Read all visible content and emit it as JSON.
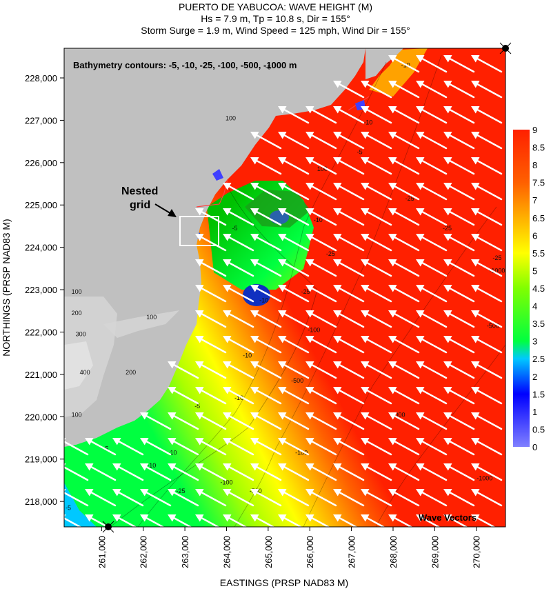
{
  "chart_data": {
    "type": "heatmap",
    "title": "PUERTO DE YABUCOA: WAVE HEIGHT (M)",
    "subtitle_lines": [
      "Hs = 7.9 m, Tp = 10.8 s, Dir = 155°",
      "Storm Surge = 1.9 m, Wind Speed = 125 mph, Wind Dir = 155°"
    ],
    "xlabel": "EASTINGS (PRSP NAD83 M)",
    "ylabel": "NORTHINGS (PRSP NAD83 M)",
    "xlim": [
      260100,
      270700
    ],
    "ylim": [
      217400,
      228700
    ],
    "x_ticks": [
      261000,
      262000,
      263000,
      264000,
      265000,
      266000,
      267000,
      268000,
      269000,
      270000
    ],
    "x_tick_labels": [
      "261,000",
      "262,000",
      "263,000",
      "264,000",
      "265,000",
      "266,000",
      "267,000",
      "268,000",
      "269,000",
      "270,000"
    ],
    "y_ticks": [
      218000,
      219000,
      220000,
      221000,
      222000,
      223000,
      224000,
      225000,
      226000,
      227000,
      228000
    ],
    "y_tick_labels": [
      "218,000",
      "219,000",
      "220,000",
      "221,000",
      "222,000",
      "223,000",
      "224,000",
      "225,000",
      "226,000",
      "227,000",
      "228,000"
    ],
    "colorbar": {
      "min": 0,
      "max": 9,
      "step": 0.5,
      "tick_labels": [
        "0",
        "0.5",
        "1",
        "1.5",
        "2",
        "2.5",
        "3",
        "3.5",
        "4",
        "4.5",
        "5",
        "5.5",
        "6",
        "6.5",
        "7",
        "7.5",
        "8",
        "8.5",
        "9"
      ],
      "stops": [
        {
          "value": 0,
          "color": "#8080ff"
        },
        {
          "value": 1.5,
          "color": "#0000ff"
        },
        {
          "value": 2.5,
          "color": "#00c8ff"
        },
        {
          "value": 3,
          "color": "#00ff40"
        },
        {
          "value": 4.5,
          "color": "#80ff00"
        },
        {
          "value": 5.5,
          "color": "#ffff00"
        },
        {
          "value": 6.5,
          "color": "#ffb000"
        },
        {
          "value": 7.5,
          "color": "#ff6000"
        },
        {
          "value": 9,
          "color": "#ff2000"
        }
      ]
    },
    "annotations": {
      "bathymetry": "Bathymetry contours: -5, -10, -25, -100, -500, -1000 m",
      "nested_grid_line1": "Nested",
      "nested_grid_line2": "grid",
      "wave_vectors": "Wave Vectors"
    },
    "contour_labels": [
      {
        "text": "-10",
        "x": 268300,
        "y": 228250
      },
      {
        "text": "-5",
        "x": 267200,
        "y": 226200
      },
      {
        "text": "-10",
        "x": 267400,
        "y": 226900
      },
      {
        "text": "-25",
        "x": 268400,
        "y": 225100
      },
      {
        "text": "-25",
        "x": 269300,
        "y": 224400
      },
      {
        "text": "-25",
        "x": 270500,
        "y": 223700
      },
      {
        "text": "-1000",
        "x": 270500,
        "y": 223400
      },
      {
        "text": "-500",
        "x": 270400,
        "y": 222100
      },
      {
        "text": "-25",
        "x": 266500,
        "y": 223800
      },
      {
        "text": "-10",
        "x": 266200,
        "y": 224600
      },
      {
        "text": "-5",
        "x": 264200,
        "y": 224400
      },
      {
        "text": "-10",
        "x": 264900,
        "y": 222700
      },
      {
        "text": "-25",
        "x": 265900,
        "y": 222900
      },
      {
        "text": "-100",
        "x": 266100,
        "y": 222000
      },
      {
        "text": "-10",
        "x": 264500,
        "y": 221400
      },
      {
        "text": "-10",
        "x": 264300,
        "y": 220400
      },
      {
        "text": "-5",
        "x": 263300,
        "y": 220200
      },
      {
        "text": "-500",
        "x": 265700,
        "y": 220800
      },
      {
        "text": "-1000",
        "x": 268100,
        "y": 220000
      },
      {
        "text": "-1000",
        "x": 270200,
        "y": 218500
      },
      {
        "text": "-500",
        "x": 264700,
        "y": 218200
      },
      {
        "text": "-100",
        "x": 264000,
        "y": 218400
      },
      {
        "text": "-25",
        "x": 262900,
        "y": 218200
      },
      {
        "text": "-10",
        "x": 262700,
        "y": 219100
      },
      {
        "text": "-10",
        "x": 262200,
        "y": 218800
      },
      {
        "text": "-5",
        "x": 261100,
        "y": 219200
      },
      {
        "text": "-5",
        "x": 260200,
        "y": 217800
      },
      {
        "text": "-100",
        "x": 265800,
        "y": 219100
      },
      {
        "text": "100",
        "x": 264100,
        "y": 227000
      },
      {
        "text": "100",
        "x": 266300,
        "y": 225800
      },
      {
        "text": "100",
        "x": 260400,
        "y": 222900
      },
      {
        "text": "200",
        "x": 260400,
        "y": 222400
      },
      {
        "text": "300",
        "x": 260500,
        "y": 221900
      },
      {
        "text": "100",
        "x": 262200,
        "y": 222300
      },
      {
        "text": "400",
        "x": 260600,
        "y": 221000
      },
      {
        "text": "200",
        "x": 261700,
        "y": 221000
      },
      {
        "text": "100",
        "x": 260400,
        "y": 220000
      },
      {
        "text": "-5",
        "x": 265000,
        "y": 228200
      }
    ]
  }
}
